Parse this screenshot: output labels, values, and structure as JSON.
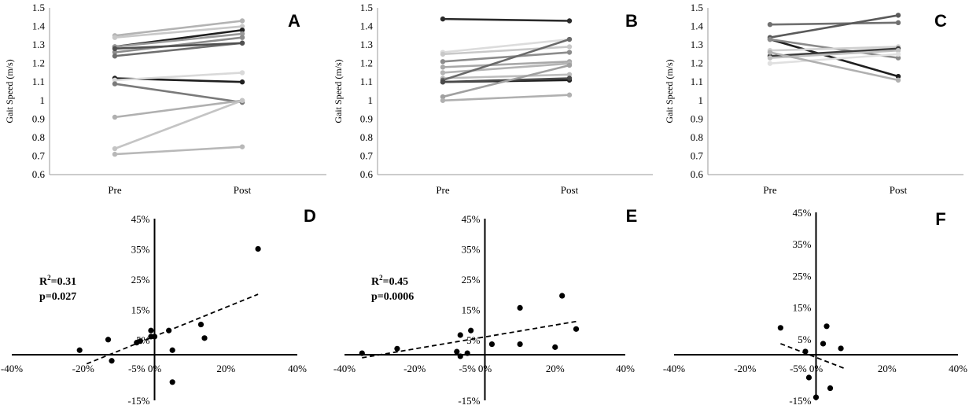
{
  "figure": {
    "panels": [
      {
        "id": "A",
        "letter": "A"
      },
      {
        "id": "B",
        "letter": "B"
      },
      {
        "id": "C",
        "letter": "C"
      },
      {
        "id": "D",
        "letter": "D"
      },
      {
        "id": "E",
        "letter": "E"
      },
      {
        "id": "F",
        "letter": "F"
      }
    ],
    "stats": {
      "D": {
        "r2_base": "R",
        "r2_sup": "2",
        "r2_value": "=0.31",
        "p": "p=0.027"
      },
      "E": {
        "r2_base": "R",
        "r2_sup": "2",
        "r2_value": "=0.45",
        "p": "p=0.0006"
      }
    }
  },
  "chart_data": [
    {
      "panel": "A",
      "type": "line",
      "ylabel": "Gait  Speed (m/s)",
      "categories": [
        "Pre",
        "Post"
      ],
      "ylim": [
        0.6,
        1.5
      ],
      "yticks": [
        "0.6",
        "0.7",
        "0.8",
        "0.9",
        "1",
        "1.1",
        "1.2",
        "1.3",
        "1.4",
        "1.5"
      ],
      "series": [
        {
          "values": [
            1.35,
            1.43
          ],
          "color": "#b3b3b3"
        },
        {
          "values": [
            1.34,
            1.4
          ],
          "color": "#c8c8c8"
        },
        {
          "values": [
            1.29,
            1.38
          ],
          "color": "#1f1f1f"
        },
        {
          "values": [
            1.29,
            1.36
          ],
          "color": "#999999"
        },
        {
          "values": [
            1.26,
            1.34
          ],
          "color": "#8c8c8c"
        },
        {
          "values": [
            1.24,
            1.31
          ],
          "color": "#6e6e6e"
        },
        {
          "values": [
            1.28,
            1.31
          ],
          "color": "#505050"
        },
        {
          "values": [
            1.12,
            1.1
          ],
          "color": "#1f1f1f"
        },
        {
          "values": [
            1.11,
            1.15
          ],
          "color": "#d9d9d9"
        },
        {
          "values": [
            1.09,
            0.99
          ],
          "color": "#7a7a7a"
        },
        {
          "values": [
            0.91,
            1.0
          ],
          "color": "#b0b0b0"
        },
        {
          "values": [
            0.74,
            1.0
          ],
          "color": "#c4c4c4"
        },
        {
          "values": [
            0.71,
            0.75
          ],
          "color": "#b8b8b8"
        }
      ]
    },
    {
      "panel": "B",
      "type": "line",
      "ylabel": "Gait  Speed (m/s)",
      "categories": [
        "Pre",
        "Post"
      ],
      "ylim": [
        0.6,
        1.5
      ],
      "yticks": [
        "0.6",
        "0.7",
        "0.8",
        "0.9",
        "1",
        "1.1",
        "1.2",
        "1.3",
        "1.4",
        "1.5"
      ],
      "series": [
        {
          "values": [
            1.44,
            1.43
          ],
          "color": "#2a2a2a"
        },
        {
          "values": [
            1.26,
            1.33
          ],
          "color": "#dcdcdc"
        },
        {
          "values": [
            1.25,
            1.29
          ],
          "color": "#c8c8c8"
        },
        {
          "values": [
            1.21,
            1.26
          ],
          "color": "#8c8c8c"
        },
        {
          "values": [
            1.18,
            1.21
          ],
          "color": "#a8a8a8"
        },
        {
          "values": [
            1.15,
            1.2
          ],
          "color": "#b4b4b4"
        },
        {
          "values": [
            1.12,
            1.14
          ],
          "color": "#bdbdbd"
        },
        {
          "values": [
            1.11,
            1.33
          ],
          "color": "#6a6a6a"
        },
        {
          "values": [
            1.1,
            1.11
          ],
          "color": "#1f1f1f"
        },
        {
          "values": [
            1.1,
            1.12
          ],
          "color": "#4a4a4a"
        },
        {
          "values": [
            1.02,
            1.19
          ],
          "color": "#a0a0a0"
        },
        {
          "values": [
            1.0,
            1.03
          ],
          "color": "#b0b0b0"
        }
      ]
    },
    {
      "panel": "C",
      "type": "line",
      "ylabel": "Gait  Speed (m/s)",
      "categories": [
        "Pre",
        "Post"
      ],
      "ylim": [
        0.6,
        1.5
      ],
      "yticks": [
        "0.6",
        "0.7",
        "0.8",
        "0.9",
        "1",
        "1.1",
        "1.2",
        "1.3",
        "1.4",
        "1.5"
      ],
      "series": [
        {
          "values": [
            1.41,
            1.42
          ],
          "color": "#707070"
        },
        {
          "values": [
            1.34,
            1.46
          ],
          "color": "#5a5a5a"
        },
        {
          "values": [
            1.33,
            1.13
          ],
          "color": "#1f1f1f"
        },
        {
          "values": [
            1.33,
            1.23
          ],
          "color": "#8a8a8a"
        },
        {
          "values": [
            1.27,
            1.29
          ],
          "color": "#d0d0d0"
        },
        {
          "values": [
            1.24,
            1.28
          ],
          "color": "#3c3c3c"
        },
        {
          "values": [
            1.23,
            1.27
          ],
          "color": "#c0c0c0"
        },
        {
          "values": [
            1.2,
            1.25
          ],
          "color": "#e0e0e0"
        },
        {
          "values": [
            1.26,
            1.11
          ],
          "color": "#b0b0b0"
        }
      ]
    },
    {
      "panel": "D",
      "type": "scatter",
      "xlim": [
        -40,
        40
      ],
      "ylim": [
        -15,
        45
      ],
      "xticks": [
        "-40%",
        "-20%",
        "-5%",
        "0%",
        "20%",
        "40%"
      ],
      "yticks": [
        "-15%",
        "5%",
        "15%",
        "25%",
        "35%",
        "45%"
      ],
      "xtick_values": [
        -40,
        -20,
        -5,
        0,
        20,
        40
      ],
      "ytick_values": [
        -15,
        5,
        15,
        25,
        35,
        45
      ],
      "points": [
        [
          -21,
          1.5
        ],
        [
          -13,
          5
        ],
        [
          -12,
          -2
        ],
        [
          -5,
          4
        ],
        [
          -4,
          4.5
        ],
        [
          -1,
          6
        ],
        [
          -1,
          8
        ],
        [
          0,
          6
        ],
        [
          4,
          8
        ],
        [
          5,
          1.5
        ],
        [
          5,
          -9
        ],
        [
          13,
          10
        ],
        [
          14,
          5.5
        ],
        [
          29,
          35
        ]
      ],
      "trendline": [
        [
          -19,
          -3
        ],
        [
          29,
          20
        ]
      ]
    },
    {
      "panel": "E",
      "type": "scatter",
      "xlim": [
        -40,
        40
      ],
      "ylim": [
        -15,
        45
      ],
      "xticks": [
        "-40%",
        "-20%",
        "-5%",
        "0%",
        "20%",
        "40%"
      ],
      "yticks": [
        "-15%",
        "5%",
        "15%",
        "25%",
        "35%",
        "45%"
      ],
      "xtick_values": [
        -40,
        -20,
        -5,
        0,
        20,
        40
      ],
      "ytick_values": [
        -15,
        5,
        15,
        25,
        35,
        45
      ],
      "points": [
        [
          -35,
          0.5
        ],
        [
          -25,
          2
        ],
        [
          -8,
          1
        ],
        [
          -7,
          6.5
        ],
        [
          -7,
          -0.5
        ],
        [
          -5,
          0.5
        ],
        [
          -4,
          8
        ],
        [
          2,
          3.5
        ],
        [
          10,
          15.5
        ],
        [
          10,
          3.5
        ],
        [
          20,
          2.5
        ],
        [
          22,
          19.5
        ],
        [
          26,
          8.5
        ]
      ],
      "trendline": [
        [
          -35,
          -1
        ],
        [
          26,
          11
        ]
      ]
    },
    {
      "panel": "F",
      "type": "scatter",
      "xlim": [
        -40,
        40
      ],
      "ylim": [
        -15,
        45
      ],
      "xticks": [
        "-40%",
        "-20%",
        "-5%",
        "0%",
        "20%",
        "40%"
      ],
      "yticks": [
        "-15%",
        "5%",
        "15%",
        "25%",
        "35%",
        "45%"
      ],
      "xtick_values": [
        -40,
        -20,
        -5,
        0,
        20,
        40
      ],
      "ytick_values": [
        -15,
        5,
        15,
        25,
        35,
        45
      ],
      "points": [
        [
          -10,
          8.5
        ],
        [
          -3,
          1
        ],
        [
          -2,
          -7.5
        ],
        [
          0,
          -14
        ],
        [
          2,
          3.5
        ],
        [
          3,
          9
        ],
        [
          4,
          -11
        ],
        [
          7,
          2
        ]
      ],
      "trendline": [
        [
          -10,
          3.5
        ],
        [
          8,
          -4.5
        ]
      ]
    }
  ]
}
